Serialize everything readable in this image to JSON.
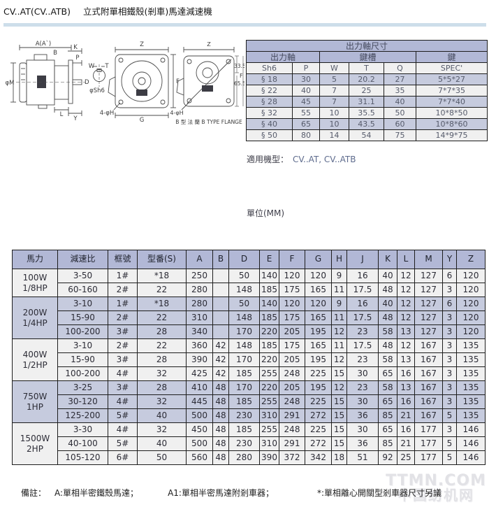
{
  "page": {
    "model": "CV..AT(CV..ATB)",
    "title": "立式附單相鐵殼(剎車)馬達減速機",
    "applicable_label": "適用機型：",
    "applicable_value": "CV..AT, CV..ATB",
    "unit_label": "單位(MM)"
  },
  "shaft_table": {
    "title": "出力軸尺寸",
    "group_headers": [
      "出力軸",
      "鍵槽",
      "鍵"
    ],
    "columns": [
      "Sh6",
      "P",
      "W",
      "T",
      "Q",
      "SPEC'"
    ],
    "rows": [
      [
        "§ 18",
        "30",
        "5",
        "20.2",
        "27",
        "5*5*27"
      ],
      [
        "§ 22",
        "40",
        "7",
        "25",
        "35",
        "7*7*35"
      ],
      [
        "§ 28",
        "45",
        "7",
        "31.1",
        "40",
        "7*7*40"
      ],
      [
        "§ 32",
        "55",
        "10",
        "35.5",
        "50",
        "10*8*50"
      ],
      [
        "§ 40",
        "65",
        "10",
        "43.5",
        "60",
        "10*8*60"
      ],
      [
        "§ 50",
        "80",
        "14",
        "54",
        "75",
        "14*9*75"
      ]
    ]
  },
  "main_table": {
    "columns": [
      "馬力",
      "減速比",
      "框號",
      "型番(S)",
      "A",
      "B",
      "D",
      "E",
      "F",
      "G",
      "H",
      "J",
      "K",
      "L",
      "M",
      "Y",
      "Z"
    ],
    "groups": [
      {
        "power": "100W",
        "hp": "1/8HP",
        "rows": [
          [
            "3-50",
            "1#",
            "*18",
            "250",
            "",
            "50",
            "140",
            "120",
            "120",
            "9",
            "16",
            "40",
            "12",
            "127",
            "6",
            "120"
          ],
          [
            "60-160",
            "2#",
            "22",
            "280",
            "",
            "148",
            "185",
            "175",
            "165",
            "11",
            "17.5",
            "48",
            "12",
            "127",
            "3",
            "120"
          ]
        ]
      },
      {
        "power": "200W",
        "hp": "1/4HP",
        "rows": [
          [
            "3-10",
            "1#",
            "*18",
            "280",
            "",
            "50",
            "140",
            "120",
            "120",
            "9",
            "16",
            "40",
            "12",
            "127",
            "6",
            "120"
          ],
          [
            "15-90",
            "2#",
            "22",
            "310",
            "",
            "148",
            "185",
            "175",
            "165",
            "11",
            "17.5",
            "48",
            "12",
            "127",
            "3",
            "120"
          ],
          [
            "100-200",
            "3#",
            "28",
            "340",
            "",
            "170",
            "220",
            "205",
            "195",
            "12",
            "23",
            "58",
            "13",
            "127",
            "3",
            "120"
          ]
        ]
      },
      {
        "power": "400W",
        "hp": "1/2HP",
        "rows": [
          [
            "3-10",
            "2#",
            "22",
            "360",
            "42",
            "148",
            "185",
            "175",
            "165",
            "11",
            "17.5",
            "48",
            "12",
            "167",
            "3",
            "135"
          ],
          [
            "15-90",
            "3#",
            "28",
            "390",
            "42",
            "170",
            "220",
            "205",
            "195",
            "12",
            "23",
            "58",
            "13",
            "167",
            "3",
            "135"
          ],
          [
            "100-200",
            "4#",
            "32",
            "425",
            "42",
            "185",
            "255",
            "248",
            "225",
            "15",
            "30",
            "65",
            "16",
            "167",
            "3",
            "135"
          ]
        ]
      },
      {
        "power": "750W",
        "hp": "1HP",
        "rows": [
          [
            "3-25",
            "3#",
            "28",
            "410",
            "48",
            "170",
            "220",
            "205",
            "195",
            "12",
            "23",
            "58",
            "13",
            "167",
            "3",
            "135"
          ],
          [
            "30-120",
            "4#",
            "32",
            "445",
            "48",
            "185",
            "255",
            "248",
            "225",
            "15",
            "30",
            "65",
            "16",
            "167",
            "3",
            "135"
          ],
          [
            "125-200",
            "5#",
            "40",
            "500",
            "48",
            "230",
            "310",
            "291",
            "272",
            "15",
            "36",
            "85",
            "21",
            "167",
            "5",
            "135"
          ]
        ]
      },
      {
        "power": "1500W",
        "hp": "2HP",
        "rows": [
          [
            "3-30",
            "4#",
            "32",
            "450",
            "48",
            "185",
            "255",
            "248",
            "225",
            "15",
            "30",
            "65",
            "16",
            "177",
            "3",
            "146"
          ],
          [
            "40-100",
            "5#",
            "40",
            "500",
            "48",
            "230",
            "310",
            "291",
            "272",
            "15",
            "36",
            "85",
            "21",
            "177",
            "5",
            "146"
          ],
          [
            "105-120",
            "6#",
            "50",
            "560",
            "48",
            "280",
            "390",
            "372",
            "342",
            "18",
            "51",
            "92",
            "25",
            "177",
            "5",
            "146"
          ]
        ]
      }
    ]
  },
  "drawings": {
    "side_view": {
      "dim_a": "A(A`)",
      "dim_b": "B",
      "dim_k": "K",
      "dim_p": "P",
      "dim_m": "φM",
      "dim_d": "D",
      "dim_l": "L",
      "dim_y": "Y",
      "dim_w": "W",
      "dim_t": "T",
      "shaft_label": "φSh6"
    },
    "front_view": {
      "dim_z": "Z",
      "dim_f": "F",
      "dim_g": "G",
      "holes": "4-φH"
    },
    "b_flange": {
      "dim_z": "Z",
      "dim_f": "F",
      "dim_top": "33.5",
      "dim_bottom": "65.5",
      "holes": "4-φH",
      "caption": "B 型 法 蘭  B TYPE FLANGE"
    }
  },
  "footnote": {
    "label": "備註：",
    "items": [
      "A:單相半密鐵殼馬達；",
      "A1:單相半密馬達附剎車器；",
      "*:單相離心開關型剎車器尺寸另議"
    ]
  },
  "watermark": {
    "line1": "TTMN.COM",
    "line2": "中国纺机网"
  },
  "colors": {
    "header_lavender": "#b2b8d6",
    "row_lavender": "#c6cbde",
    "row_light": "#f0f0f0",
    "divider_blue": "#cddeea"
  }
}
